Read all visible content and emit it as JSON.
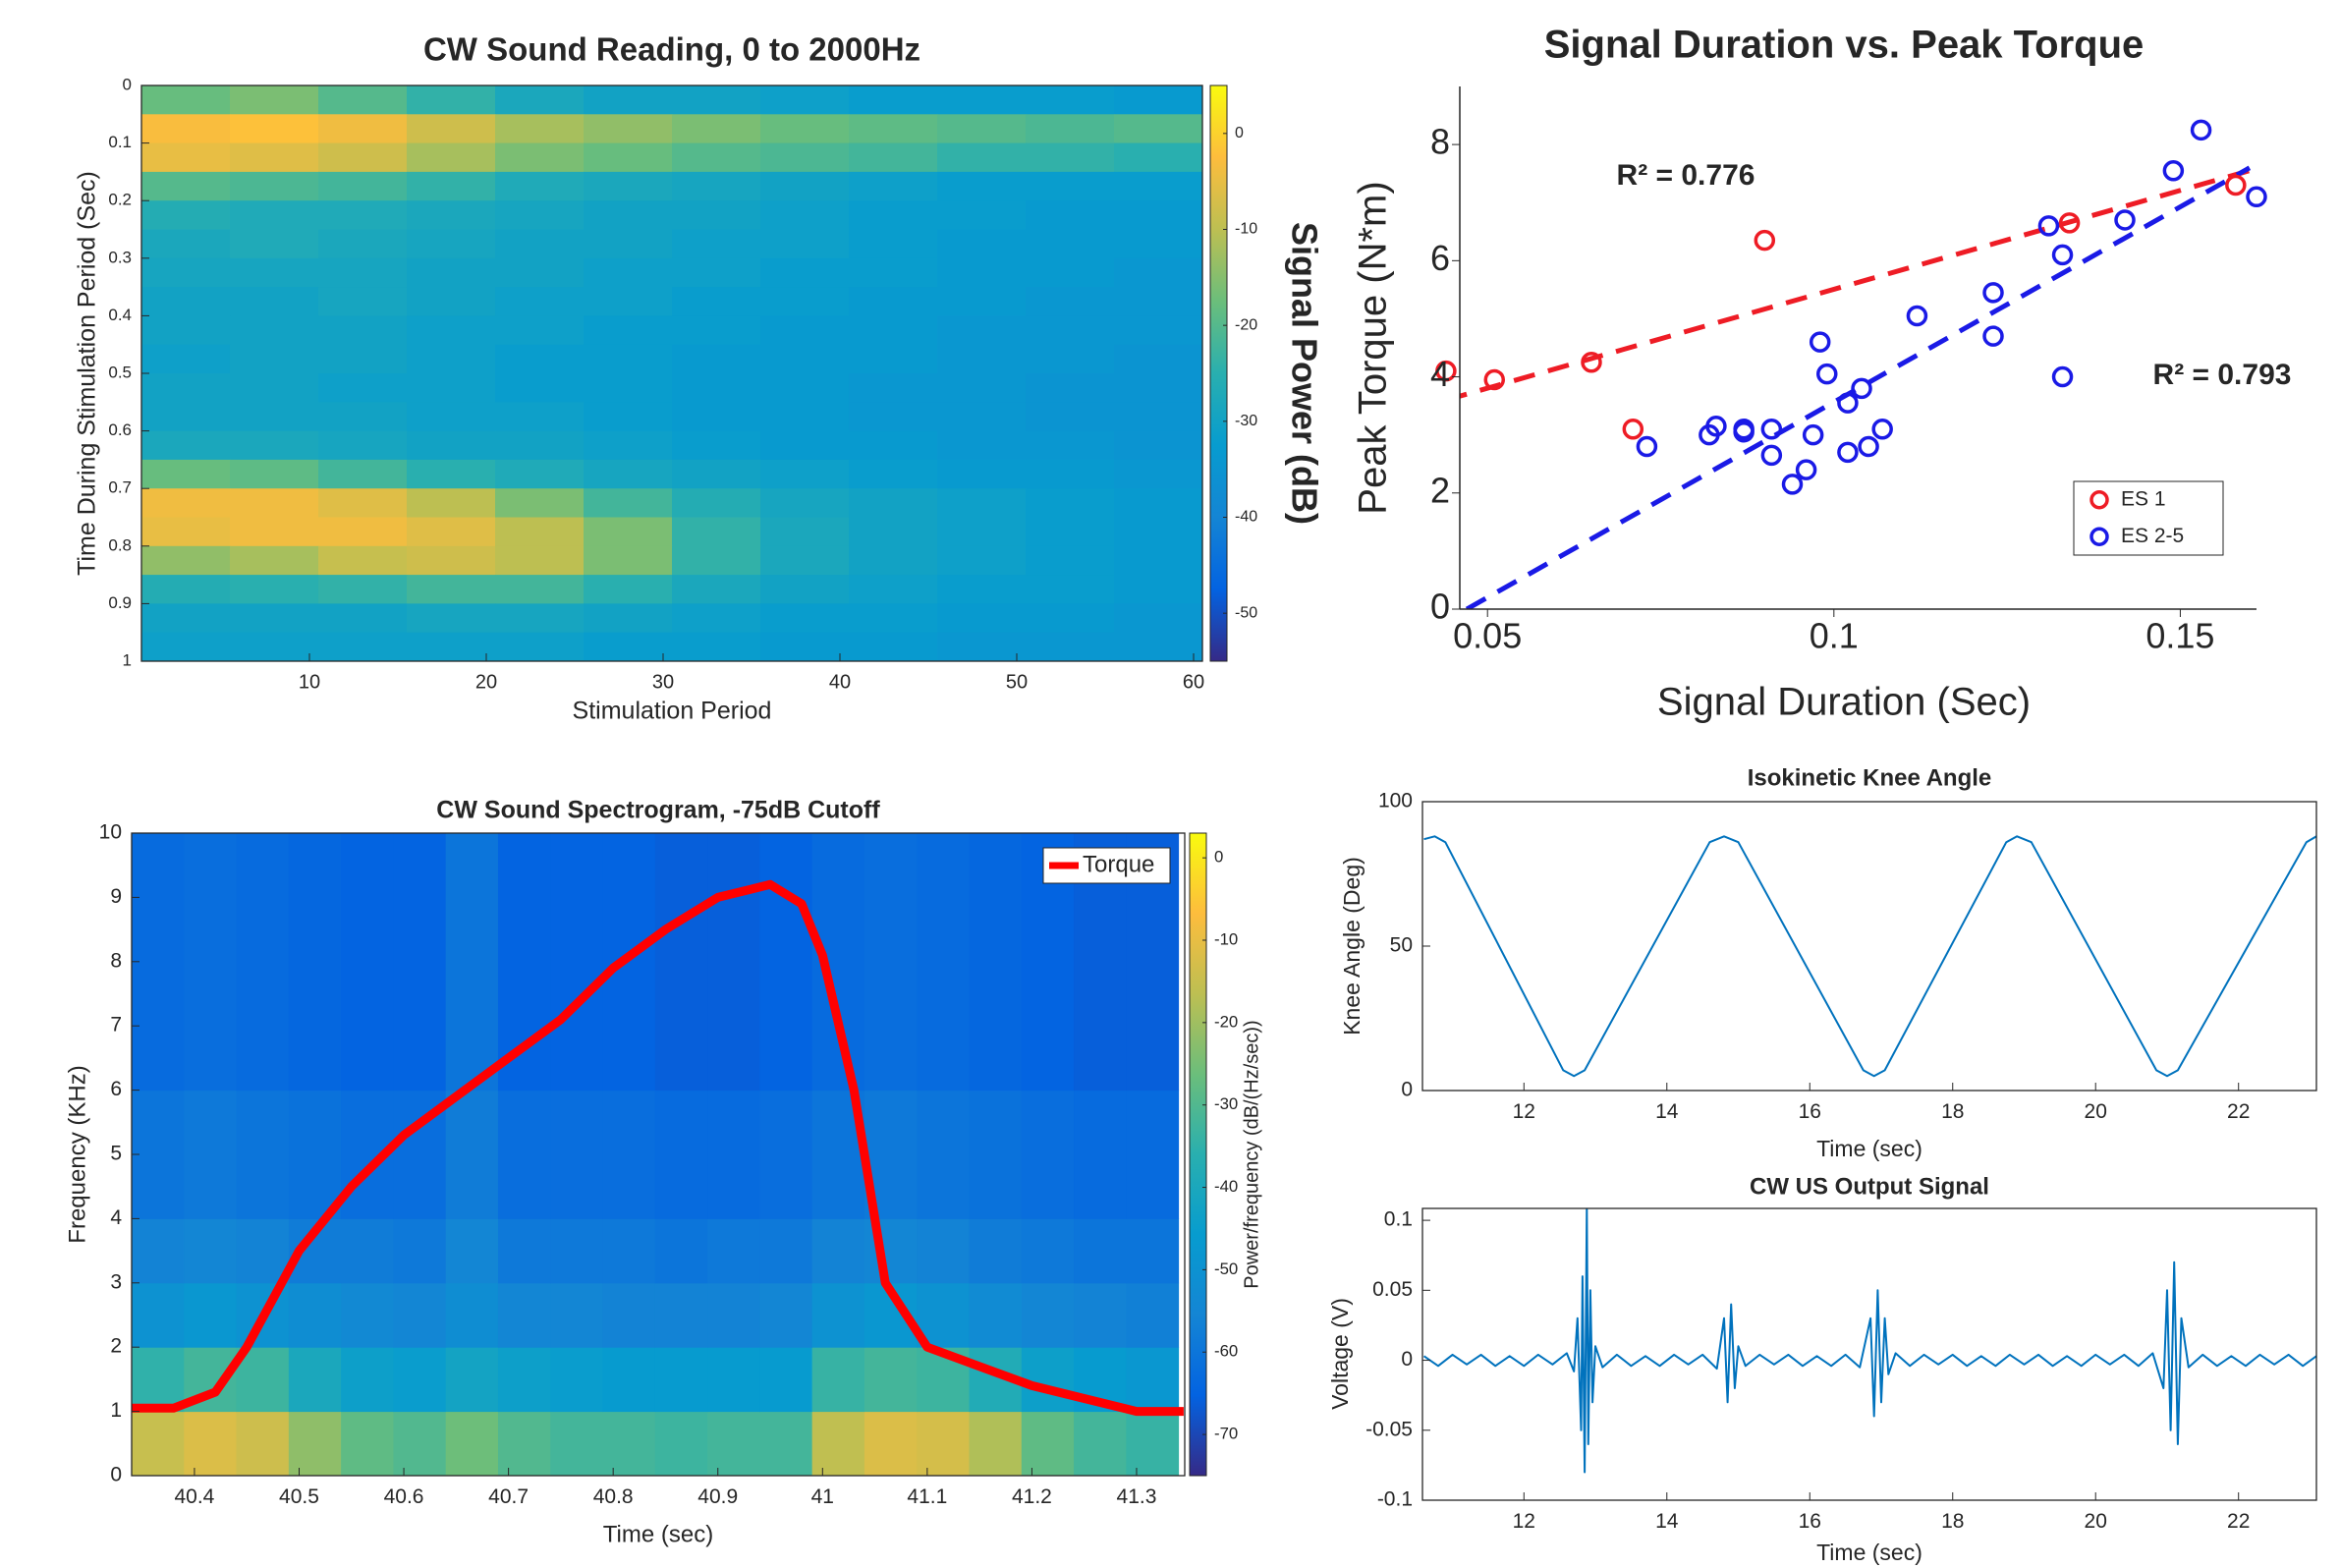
{
  "chart_data": [
    {
      "type": "heatmap",
      "title": "CW Sound Reading, 0 to 2000Hz",
      "x_label": "Stimulation Period",
      "y_label": "Time During Stimulation Period (Sec)",
      "colorbar_label": "Signal Power (dB)",
      "colormap": "parula",
      "y_reversed": true,
      "xlim": [
        0.5,
        60.5
      ],
      "xticks": [
        10,
        20,
        30,
        40,
        50,
        60
      ],
      "ylim": [
        0,
        1
      ],
      "yticks": [
        0,
        0.1,
        0.2,
        0.3,
        0.4,
        0.5,
        0.6,
        0.7,
        0.8,
        0.9,
        1
      ],
      "clim": [
        -55,
        5
      ],
      "cticks": [
        0,
        -10,
        -20,
        -30,
        -40,
        -50
      ],
      "x_bins": [
        0.5,
        5.5,
        10.5,
        15.5,
        20.5,
        25.5,
        30.5,
        35.5,
        40.5,
        45.5,
        50.5,
        55.5,
        60.5
      ],
      "y_bins": [
        0,
        0.05,
        0.1,
        0.15,
        0.2,
        0.25,
        0.3,
        0.35,
        0.4,
        0.45,
        0.5,
        0.55,
        0.6,
        0.65,
        0.7,
        0.75,
        0.8,
        0.85,
        0.9,
        0.95,
        1
      ],
      "values": [
        [
          -18,
          -16,
          -20,
          -24,
          -28,
          -30,
          -30,
          -31,
          -32,
          -32,
          -32,
          -33
        ],
        [
          -3,
          -2,
          -4,
          -8,
          -12,
          -14,
          -16,
          -18,
          -19,
          -20,
          -21,
          -20
        ],
        [
          -5,
          -6,
          -8,
          -12,
          -16,
          -18,
          -20,
          -21,
          -22,
          -24,
          -24,
          -25
        ],
        [
          -20,
          -21,
          -22,
          -24,
          -27,
          -28,
          -29,
          -30,
          -31,
          -32,
          -32,
          -32
        ],
        [
          -26,
          -27,
          -27,
          -28,
          -29,
          -30,
          -30,
          -31,
          -32,
          -32,
          -33,
          -33
        ],
        [
          -28,
          -27,
          -28,
          -29,
          -30,
          -30,
          -31,
          -31,
          -32,
          -33,
          -33,
          -33
        ],
        [
          -29,
          -29,
          -29,
          -30,
          -30,
          -31,
          -31,
          -32,
          -32,
          -33,
          -33,
          -34
        ],
        [
          -30,
          -30,
          -29,
          -30,
          -31,
          -31,
          -32,
          -32,
          -33,
          -33,
          -34,
          -34
        ],
        [
          -30,
          -30,
          -30,
          -31,
          -31,
          -32,
          -32,
          -33,
          -33,
          -34,
          -34,
          -34
        ],
        [
          -31,
          -30,
          -30,
          -31,
          -32,
          -32,
          -33,
          -33,
          -33,
          -34,
          -34,
          -35
        ],
        [
          -30,
          -30,
          -31,
          -31,
          -32,
          -32,
          -33,
          -33,
          -34,
          -34,
          -35,
          -35
        ],
        [
          -30,
          -30,
          -30,
          -31,
          -31,
          -32,
          -33,
          -33,
          -34,
          -34,
          -35,
          -35
        ],
        [
          -28,
          -28,
          -29,
          -30,
          -30,
          -31,
          -32,
          -33,
          -33,
          -34,
          -34,
          -35
        ],
        [
          -18,
          -19,
          -22,
          -25,
          -27,
          -29,
          -30,
          -31,
          -32,
          -33,
          -33,
          -34
        ],
        [
          -4,
          -4,
          -6,
          -10,
          -16,
          -22,
          -26,
          -29,
          -30,
          -31,
          -32,
          -33
        ],
        [
          -5,
          -4,
          -4,
          -6,
          -10,
          -16,
          -24,
          -28,
          -30,
          -31,
          -32,
          -33
        ],
        [
          -14,
          -12,
          -9,
          -8,
          -10,
          -16,
          -24,
          -28,
          -30,
          -31,
          -32,
          -33
        ],
        [
          -26,
          -25,
          -24,
          -22,
          -22,
          -25,
          -28,
          -30,
          -31,
          -32,
          -32,
          -33
        ],
        [
          -30,
          -30,
          -30,
          -29,
          -29,
          -30,
          -31,
          -32,
          -32,
          -33,
          -33,
          -34
        ],
        [
          -31,
          -31,
          -31,
          -31,
          -31,
          -32,
          -32,
          -33,
          -33,
          -34,
          -34,
          -34
        ]
      ]
    },
    {
      "type": "scatter",
      "title": "Signal Duration vs. Peak Torque",
      "x_label": "Signal Duration (Sec)",
      "y_label": "Peak Torque (N*m)",
      "xlim": [
        0.046,
        0.161
      ],
      "xticks": [
        0.05,
        0.1,
        0.15
      ],
      "ylim": [
        0,
        9
      ],
      "yticks": [
        0,
        2,
        4,
        6,
        8
      ],
      "legend": "lower right",
      "series": [
        {
          "name": "ES 1",
          "color": "#ee1c25",
          "annotation": "R² = 0.776",
          "x": [
            0.044,
            0.051,
            0.065,
            0.071,
            0.09,
            0.134,
            0.158
          ],
          "values": [
            4.1,
            3.95,
            4.25,
            3.1,
            6.35,
            6.65,
            7.3
          ],
          "fit": {
            "x": [
              0.044,
              0.16
            ],
            "values": [
              3.6,
              7.55
            ]
          }
        },
        {
          "name": "ES 2-5",
          "color": "#1a1ae6",
          "annotation": "R² = 0.793",
          "x": [
            0.073,
            0.082,
            0.083,
            0.087,
            0.087,
            0.091,
            0.091,
            0.094,
            0.096,
            0.097,
            0.098,
            0.099,
            0.102,
            0.102,
            0.104,
            0.105,
            0.107,
            0.112,
            0.123,
            0.123,
            0.131,
            0.133,
            0.133,
            0.142,
            0.149,
            0.153,
            0.161
          ],
          "values": [
            2.8,
            3.0,
            3.15,
            3.1,
            3.05,
            3.1,
            2.65,
            2.15,
            2.4,
            3.0,
            4.6,
            4.05,
            3.55,
            2.7,
            3.8,
            2.8,
            3.1,
            5.05,
            5.45,
            4.7,
            6.6,
            6.1,
            4.0,
            6.7,
            7.55,
            8.25,
            7.1
          ],
          "fit": {
            "x": [
              0.047,
              0.16
            ],
            "values": [
              0,
              7.6
            ]
          }
        }
      ]
    },
    {
      "type": "heatmap",
      "title": "CW Sound Spectrogram, -75dB Cutoff",
      "x_label": "Time (sec)",
      "y_label": "Frequency (KHz)",
      "colorbar_label": "Power/frequency (dB/(Hz/sec))",
      "colormap": "parula",
      "y_reversed": false,
      "legend": "upper right",
      "xlim": [
        40.34,
        41.346
      ],
      "xticks": [
        40.4,
        40.5,
        40.6,
        40.7,
        40.8,
        40.9,
        41,
        41.1,
        41.2,
        41.3
      ],
      "ylim": [
        0,
        10
      ],
      "yticks": [
        0,
        1,
        2,
        3,
        4,
        5,
        6,
        7,
        8,
        9,
        10
      ],
      "clim": [
        -75,
        3
      ],
      "cticks": [
        0,
        -10,
        -20,
        -30,
        -40,
        -50,
        -60,
        -70
      ],
      "x_bins": [
        40.34,
        40.39,
        40.44,
        40.49,
        40.54,
        40.59,
        40.64,
        40.69,
        40.74,
        40.79,
        40.84,
        40.89,
        40.94,
        40.99,
        41.04,
        41.09,
        41.14,
        41.19,
        41.24,
        41.29,
        41.34
      ],
      "y_bins": [
        0,
        1,
        2,
        3,
        4,
        6,
        10
      ],
      "values": [
        [
          -15,
          -12,
          -14,
          -22,
          -28,
          -30,
          -26,
          -30,
          -32,
          -32,
          -33,
          -32,
          -32,
          -16,
          -12,
          -13,
          -18,
          -28,
          -32,
          -34
        ],
        [
          -35,
          -32,
          -33,
          -40,
          -44,
          -45,
          -42,
          -44,
          -45,
          -46,
          -46,
          -46,
          -46,
          -34,
          -32,
          -33,
          -38,
          -44,
          -46,
          -48
        ],
        [
          -50,
          -48,
          -50,
          -52,
          -54,
          -55,
          -52,
          -55,
          -55,
          -56,
          -56,
          -56,
          -55,
          -50,
          -48,
          -50,
          -53,
          -55,
          -56,
          -57
        ],
        [
          -56,
          -55,
          -56,
          -58,
          -58,
          -59,
          -55,
          -59,
          -59,
          -59,
          -60,
          -59,
          -59,
          -56,
          -55,
          -56,
          -58,
          -59,
          -60,
          -60
        ],
        [
          -60,
          -59,
          -60,
          -61,
          -62,
          -62,
          -58,
          -62,
          -62,
          -62,
          -63,
          -63,
          -62,
          -60,
          -59,
          -60,
          -61,
          -62,
          -63,
          -63
        ],
        [
          -63,
          -62,
          -63,
          -64,
          -65,
          -65,
          -60,
          -65,
          -65,
          -65,
          -66,
          -66,
          -65,
          -63,
          -62,
          -63,
          -64,
          -65,
          -66,
          -66
        ]
      ],
      "series": [
        {
          "name": "Torque",
          "color": "#ff0000",
          "x": [
            40.34,
            40.38,
            40.42,
            40.45,
            40.5,
            40.55,
            40.6,
            40.65,
            40.7,
            40.75,
            40.8,
            40.85,
            40.9,
            40.95,
            40.98,
            41.0,
            41.03,
            41.06,
            41.1,
            41.15,
            41.2,
            41.25,
            41.3,
            41.345
          ],
          "values": [
            1.05,
            1.05,
            1.3,
            2.0,
            3.5,
            4.5,
            5.3,
            5.9,
            6.5,
            7.1,
            7.9,
            8.5,
            9.0,
            9.2,
            8.9,
            8.1,
            6.0,
            3.0,
            2.0,
            1.7,
            1.4,
            1.2,
            1.0,
            1.0
          ]
        }
      ]
    },
    {
      "type": "line",
      "title": "Isokinetic Knee Angle",
      "x_label": "Time (sec)",
      "y_label": "Knee Angle (Deg)",
      "xlim": [
        10.58,
        23.09
      ],
      "xticks": [
        12,
        14,
        16,
        18,
        20,
        22
      ],
      "ylim": [
        0,
        100
      ],
      "yticks": [
        0,
        50,
        100
      ],
      "series": [
        {
          "color": "#0072bd",
          "x": [
            10.6,
            10.75,
            10.9,
            12.55,
            12.7,
            12.85,
            14.6,
            14.8,
            15.0,
            16.75,
            16.9,
            17.05,
            18.75,
            18.9,
            19.1,
            20.85,
            21.0,
            21.15,
            22.95,
            23.09
          ],
          "values": [
            87,
            88,
            86,
            7,
            5,
            7,
            86,
            88,
            86,
            7,
            5,
            7,
            86,
            88,
            86,
            7,
            5,
            7,
            86,
            88
          ]
        }
      ]
    },
    {
      "type": "line",
      "title": "CW US Output Signal",
      "x_label": "Time (sec)",
      "y_label": "Voltage (V)",
      "xlim": [
        10.58,
        23.09
      ],
      "xticks": [
        12,
        14,
        16,
        18,
        20,
        22
      ],
      "ylim": [
        -0.1,
        0.1085
      ],
      "yticks": [
        -0.1,
        -0.05,
        0,
        0.05,
        0.1
      ],
      "series": [
        {
          "color": "#0072bd",
          "x": [
            10.6,
            10.8,
            11.0,
            11.2,
            11.4,
            11.6,
            11.8,
            12.0,
            12.2,
            12.4,
            12.6,
            12.7,
            12.75,
            12.8,
            12.82,
            12.85,
            12.88,
            12.9,
            12.93,
            12.96,
            13.0,
            13.1,
            13.3,
            13.5,
            13.7,
            13.9,
            14.1,
            14.3,
            14.5,
            14.7,
            14.8,
            14.85,
            14.9,
            14.95,
            15.0,
            15.1,
            15.3,
            15.5,
            15.7,
            15.9,
            16.1,
            16.3,
            16.5,
            16.7,
            16.85,
            16.9,
            16.95,
            17.0,
            17.05,
            17.1,
            17.2,
            17.4,
            17.6,
            17.8,
            18.0,
            18.2,
            18.4,
            18.6,
            18.8,
            19.0,
            19.2,
            19.4,
            19.6,
            19.8,
            20.0,
            20.2,
            20.4,
            20.6,
            20.8,
            20.95,
            21.0,
            21.05,
            21.1,
            21.15,
            21.2,
            21.3,
            21.5,
            21.7,
            21.9,
            22.1,
            22.3,
            22.5,
            22.7,
            22.9,
            23.09
          ],
          "values": [
            0.003,
            -0.004,
            0.004,
            -0.003,
            0.004,
            -0.004,
            0.003,
            -0.004,
            0.004,
            -0.003,
            0.005,
            -0.008,
            0.03,
            -0.05,
            0.06,
            -0.08,
            0.11,
            -0.06,
            0.05,
            -0.03,
            0.01,
            -0.005,
            0.004,
            -0.004,
            0.003,
            -0.004,
            0.004,
            -0.003,
            0.004,
            -0.006,
            0.03,
            -0.03,
            0.04,
            -0.02,
            0.01,
            -0.004,
            0.004,
            -0.003,
            0.004,
            -0.004,
            0.003,
            -0.004,
            0.004,
            -0.005,
            0.03,
            -0.04,
            0.05,
            -0.03,
            0.03,
            -0.01,
            0.005,
            -0.004,
            0.004,
            -0.003,
            0.004,
            -0.004,
            0.003,
            -0.004,
            0.004,
            -0.003,
            0.004,
            -0.004,
            0.003,
            -0.004,
            0.004,
            -0.003,
            0.004,
            -0.004,
            0.005,
            -0.02,
            0.05,
            -0.05,
            0.07,
            -0.06,
            0.03,
            -0.005,
            0.004,
            -0.004,
            0.003,
            -0.004,
            0.004,
            -0.003,
            0.004,
            -0.004,
            0.003
          ]
        }
      ]
    }
  ]
}
